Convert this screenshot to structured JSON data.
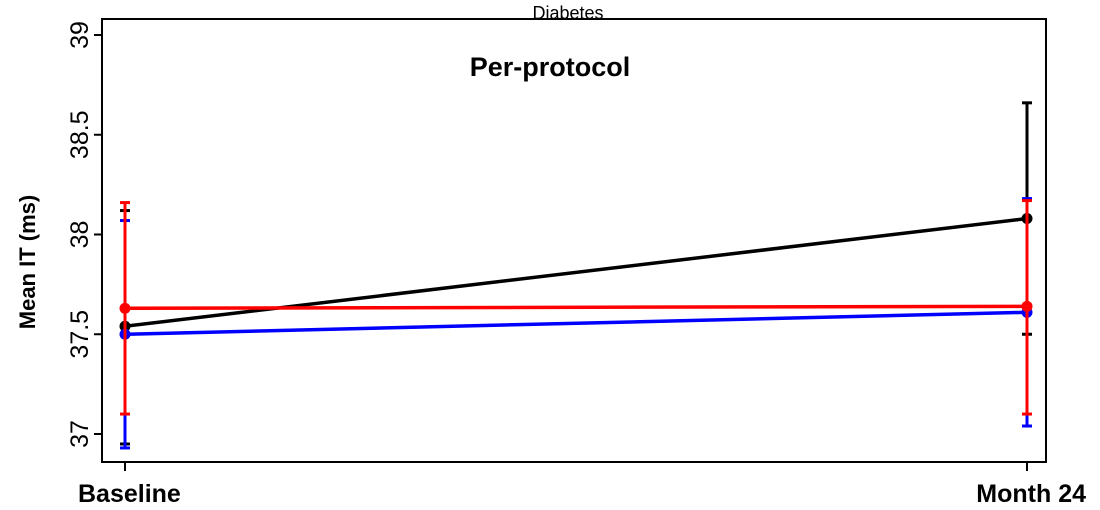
{
  "chart_data": {
    "type": "line",
    "title": "Diabetes",
    "subtitle": "Per-protocol",
    "xlabel": "",
    "ylabel": "Mean IT (ms)",
    "categories": [
      "Baseline",
      "Month 24"
    ],
    "ylim": [
      36.93,
      39
    ],
    "yticks": [
      37,
      37.5,
      38,
      38.5,
      39
    ],
    "ytick_labels": [
      "37",
      "37.5",
      "38",
      "38.5",
      "39"
    ],
    "grid": false,
    "legend": "none",
    "series": [
      {
        "color": "#000000",
        "values": [
          37.54,
          38.08
        ],
        "ci_lower": [
          36.95,
          37.5
        ],
        "ci_upper": [
          38.12,
          38.66
        ]
      },
      {
        "color": "#0000ff",
        "values": [
          37.5,
          37.61
        ],
        "ci_lower": [
          36.93,
          37.04
        ],
        "ci_upper": [
          38.07,
          38.18
        ]
      },
      {
        "color": "#ff0000",
        "values": [
          37.63,
          37.64
        ],
        "ci_lower": [
          37.1,
          37.1
        ],
        "ci_upper": [
          38.16,
          38.17
        ]
      }
    ]
  }
}
